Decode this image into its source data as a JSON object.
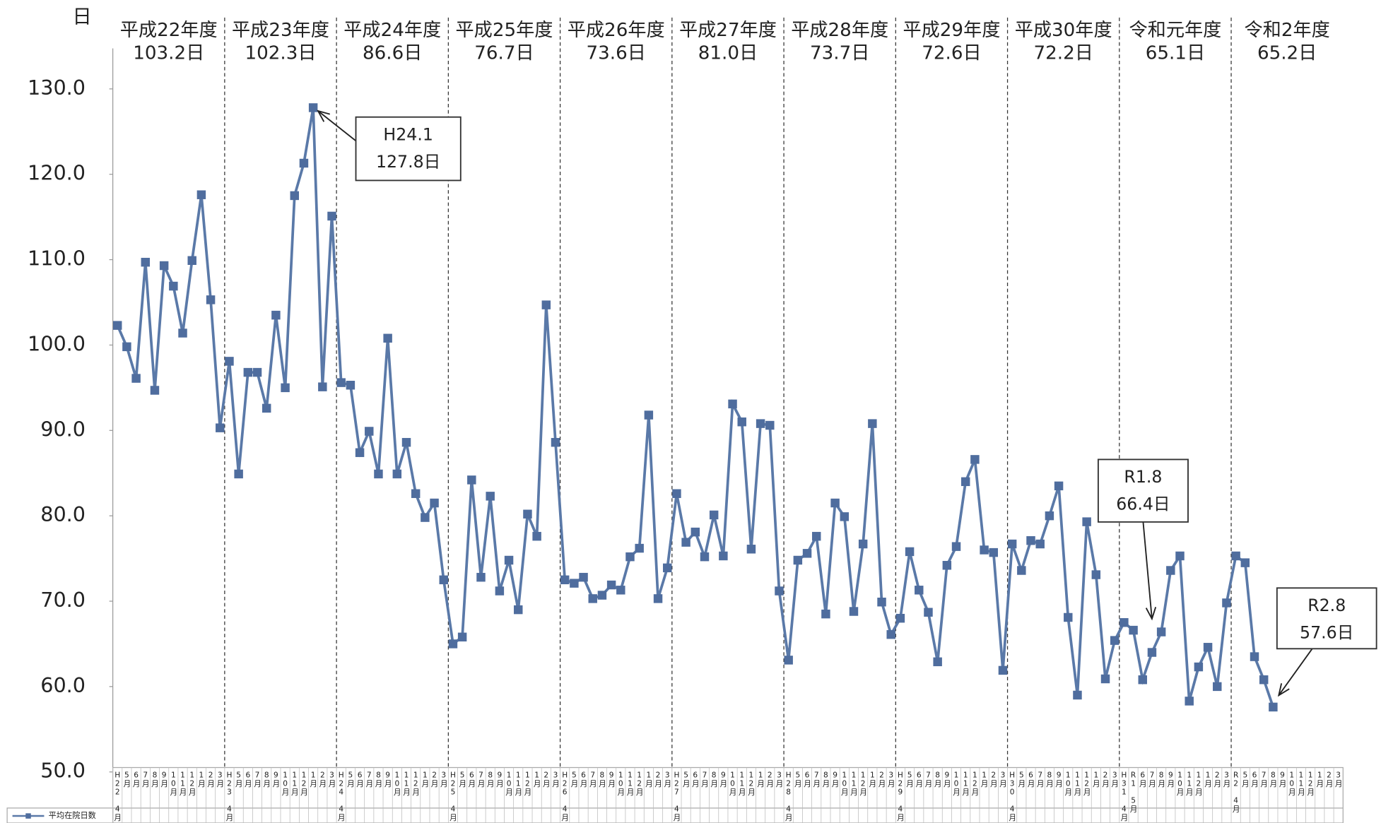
{
  "chart_data": {
    "type": "line",
    "y_axis_label": "日",
    "ylim": [
      50,
      130
    ],
    "yticks": [
      {
        "value": 50,
        "label": "50.0"
      },
      {
        "value": 60,
        "label": "60.0"
      },
      {
        "value": 70,
        "label": "70.0"
      },
      {
        "value": 80,
        "label": "80.0"
      },
      {
        "value": 90,
        "label": "90.0"
      },
      {
        "value": 100,
        "label": "100.0"
      },
      {
        "value": 110,
        "label": "110.0"
      },
      {
        "value": 120,
        "label": "120.0"
      },
      {
        "value": 130,
        "label": "130.0"
      }
    ],
    "year_averages": {
      "names": [
        "平成22年度",
        "平成23年度",
        "平成24年度",
        "平成25年度",
        "平成26年度",
        "平成27年度",
        "平成28年度",
        "平成29年度",
        "平成30年度",
        "令和元年度",
        "令和2年度"
      ],
      "values": [
        103.2,
        102.3,
        86.6,
        76.7,
        73.6,
        81.0,
        73.7,
        72.6,
        72.2,
        65.1,
        65.2
      ],
      "value_labels": [
        "103.2日",
        "102.3日",
        "86.6日",
        "76.7日",
        "73.6日",
        "81.0日",
        "73.7日",
        "72.6日",
        "72.2日",
        "65.1日",
        "65.2日"
      ]
    },
    "categories": [
      "H22 4月",
      "5月",
      "6月",
      "7月",
      "8月",
      "9月",
      "10月",
      "11月",
      "12月",
      "1月",
      "2月",
      "3月",
      "H23 4月",
      "5月",
      "6月",
      "7月",
      "8月",
      "9月",
      "10月",
      "11月",
      "12月",
      "1月",
      "2月",
      "3月",
      "H24 4月",
      "5月",
      "6月",
      "7月",
      "8月",
      "9月",
      "10月",
      "11月",
      "12月",
      "1月",
      "2月",
      "3月",
      "H25 4月",
      "5月",
      "6月",
      "7月",
      "8月",
      "9月",
      "10月",
      "11月",
      "12月",
      "1月",
      "2月",
      "3月",
      "H26 4月",
      "5月",
      "6月",
      "7月",
      "8月",
      "9月",
      "10月",
      "11月",
      "12月",
      "1月",
      "2月",
      "3月",
      "H27 4月",
      "5月",
      "6月",
      "7月",
      "8月",
      "9月",
      "10月",
      "11月",
      "12月",
      "1月",
      "2月",
      "3月",
      "H28 4月",
      "5月",
      "6月",
      "7月",
      "8月",
      "9月",
      "10月",
      "11月",
      "12月",
      "1月",
      "2月",
      "3月",
      "H29 4月",
      "5月",
      "6月",
      "7月",
      "8月",
      "9月",
      "10月",
      "11月",
      "12月",
      "1月",
      "2月",
      "3月",
      "H30 4月",
      "5月",
      "6月",
      "7月",
      "8月",
      "9月",
      "10月",
      "11月",
      "12月",
      "1月",
      "2月",
      "3月",
      "H31 4月",
      "R1 5月",
      "6月",
      "7月",
      "8月",
      "9月",
      "10月",
      "11月",
      "12月",
      "1月",
      "2月",
      "3月",
      "R2 4月",
      "5月",
      "6月",
      "7月",
      "8月",
      "9月",
      "10月",
      "11月",
      "12月",
      "1月",
      "2月",
      "3月"
    ],
    "series": [
      {
        "name": "平均在院日数",
        "color": "#5a79a8",
        "values": [
          102.3,
          99.8,
          96.1,
          109.7,
          94.7,
          109.3,
          106.9,
          101.4,
          109.9,
          117.6,
          105.3,
          90.3,
          98.1,
          84.9,
          96.8,
          96.8,
          92.6,
          103.5,
          95.0,
          117.5,
          121.3,
          127.8,
          95.1,
          115.1,
          95.6,
          95.3,
          87.4,
          89.9,
          84.9,
          100.8,
          84.9,
          88.6,
          82.6,
          79.8,
          81.5,
          72.5,
          65.0,
          65.8,
          84.2,
          72.8,
          82.3,
          71.2,
          74.8,
          69.0,
          80.2,
          77.6,
          104.7,
          88.6,
          72.5,
          72.1,
          72.8,
          70.3,
          70.7,
          71.9,
          71.3,
          75.2,
          76.2,
          91.8,
          70.3,
          73.9,
          82.6,
          76.9,
          78.1,
          75.2,
          80.1,
          75.3,
          93.1,
          91.0,
          76.1,
          90.8,
          90.6,
          71.2,
          63.1,
          74.8,
          75.6,
          77.6,
          68.5,
          81.5,
          79.9,
          68.8,
          76.7,
          90.8,
          69.9,
          66.1,
          68.0,
          75.8,
          71.3,
          68.7,
          62.9,
          74.2,
          76.4,
          84.0,
          86.6,
          76.0,
          75.7,
          61.9,
          76.7,
          73.6,
          77.1,
          76.7,
          80.0,
          83.5,
          68.1,
          59.0,
          79.3,
          73.1,
          60.9,
          65.4,
          67.5,
          66.6,
          60.8,
          64.0,
          66.4,
          73.6,
          75.3,
          58.3,
          62.3,
          64.6,
          60.0,
          69.8,
          75.3,
          74.5,
          63.5,
          60.8,
          57.6,
          null,
          null,
          null,
          null,
          null,
          null,
          null
        ]
      }
    ],
    "annotations": [
      {
        "lines": [
          "H24.1",
          "127.8日"
        ]
      },
      {
        "lines": [
          "R1.8",
          "66.4日"
        ]
      },
      {
        "lines": [
          "R2.8",
          "57.6日"
        ]
      }
    ]
  }
}
